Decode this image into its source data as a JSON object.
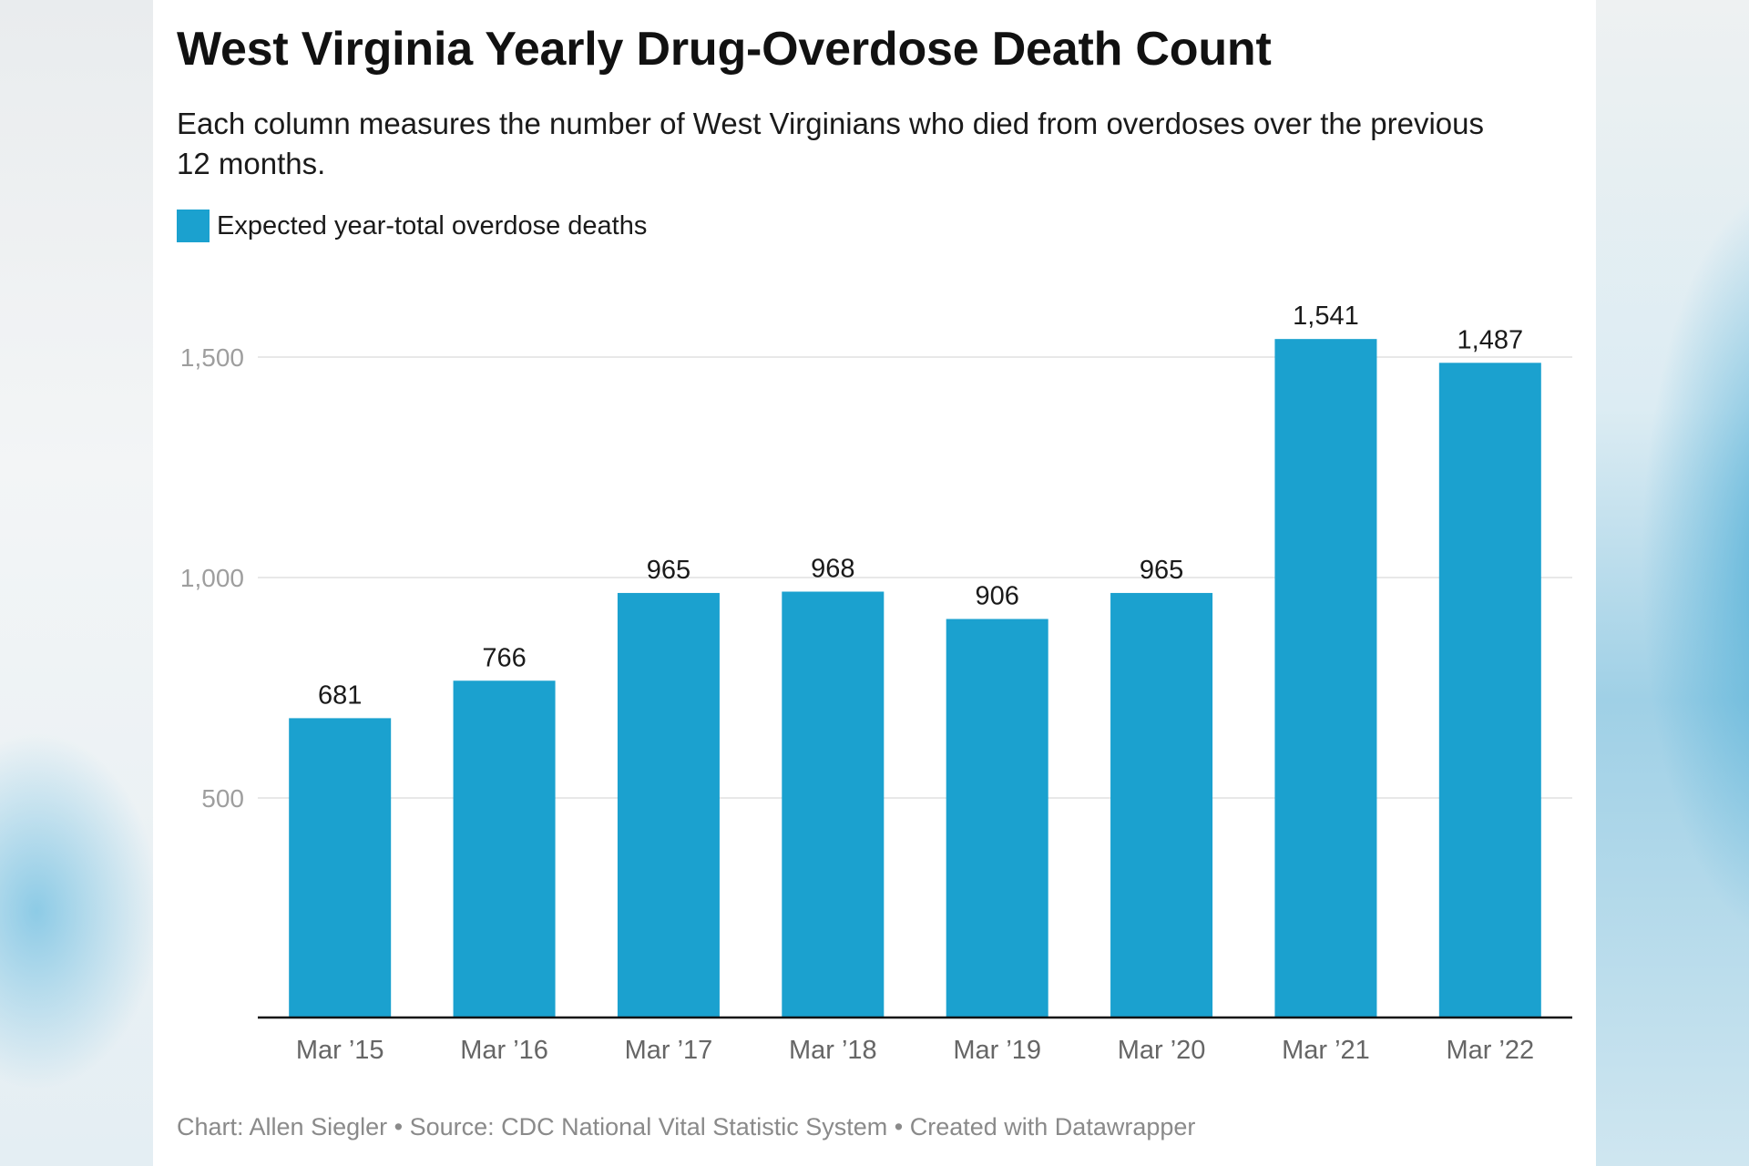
{
  "chart_data": {
    "type": "bar",
    "title": "West Virginia Yearly Drug-Overdose Death Count",
    "subtitle": "Each column measures the number of West Virginians who died from overdoses over the previous 12 months.",
    "legend": [
      "Expected year-total overdose deaths"
    ],
    "categories": [
      "Mar ’15",
      "Mar ’16",
      "Mar ’17",
      "Mar ’18",
      "Mar ’19",
      "Mar ’20",
      "Mar ’21",
      "Mar ’22"
    ],
    "series": [
      {
        "name": "Expected year-total overdose deaths",
        "values": [
          681,
          766,
          965,
          968,
          906,
          965,
          1541,
          1487
        ],
        "labels": [
          "681",
          "766",
          "965",
          "968",
          "906",
          "965",
          "1,541",
          "1,487"
        ]
      }
    ],
    "yticks": [
      {
        "value": 500,
        "label": "500"
      },
      {
        "value": 1000,
        "label": "1,000"
      },
      {
        "value": 1500,
        "label": "1,500"
      }
    ],
    "ylim": [
      0,
      1500
    ],
    "grid": true,
    "legend_position": "top-left",
    "colors": {
      "bar": "#1ba1cf",
      "grid": "#e0e0e0",
      "axis": "#111111",
      "tick_label": "#9e9e9e",
      "category_label": "#666666"
    },
    "source": "Chart: Allen Siegler • Source: CDC National Vital Statistic System • Created with Datawrapper"
  }
}
